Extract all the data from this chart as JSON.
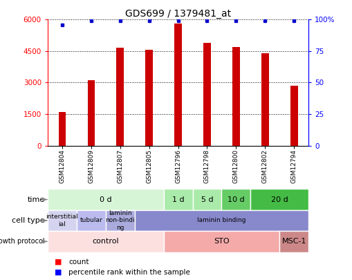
{
  "title": "GDS699 / 1379481_at",
  "samples": [
    "GSM12804",
    "GSM12809",
    "GSM12807",
    "GSM12805",
    "GSM12796",
    "GSM12798",
    "GSM12800",
    "GSM12802",
    "GSM12794"
  ],
  "counts": [
    1600,
    3100,
    4650,
    4550,
    5800,
    4900,
    4700,
    4400,
    2850
  ],
  "percentiles": [
    96,
    99,
    99,
    99,
    99,
    99,
    99,
    99,
    99
  ],
  "bar_color": "#cc0000",
  "dot_color": "#0000cc",
  "ylim_left": [
    0,
    6000
  ],
  "ylim_right": [
    0,
    100
  ],
  "yticks_left": [
    0,
    1500,
    3000,
    4500,
    6000
  ],
  "yticks_right": [
    0,
    25,
    50,
    75,
    100
  ],
  "ytick_labels_right": [
    "0",
    "25",
    "50",
    "75",
    "100%"
  ],
  "time_groups": [
    {
      "label": "0 d",
      "start": 0,
      "end": 4,
      "color": "#d6f5d6"
    },
    {
      "label": "1 d",
      "start": 4,
      "end": 5,
      "color": "#aaeaaa"
    },
    {
      "label": "5 d",
      "start": 5,
      "end": 6,
      "color": "#aaeaaa"
    },
    {
      "label": "10 d",
      "start": 6,
      "end": 7,
      "color": "#66cc66"
    },
    {
      "label": "20 d",
      "start": 7,
      "end": 9,
      "color": "#44bb44"
    }
  ],
  "cell_type_groups": [
    {
      "label": "interstitial\nial",
      "start": 0,
      "end": 1,
      "color": "#d4d4f0"
    },
    {
      "label": "tubular",
      "start": 1,
      "end": 2,
      "color": "#bbbbee"
    },
    {
      "label": "laminin\nnon-bindi\nng",
      "start": 2,
      "end": 3,
      "color": "#aaaadd"
    },
    {
      "label": "laminin binding",
      "start": 3,
      "end": 9,
      "color": "#8888cc"
    }
  ],
  "growth_protocol_groups": [
    {
      "label": "control",
      "start": 0,
      "end": 4,
      "color": "#fce0e0"
    },
    {
      "label": "STO",
      "start": 4,
      "end": 8,
      "color": "#f5aaaa"
    },
    {
      "label": "MSC-1",
      "start": 8,
      "end": 9,
      "color": "#cc8888"
    }
  ]
}
